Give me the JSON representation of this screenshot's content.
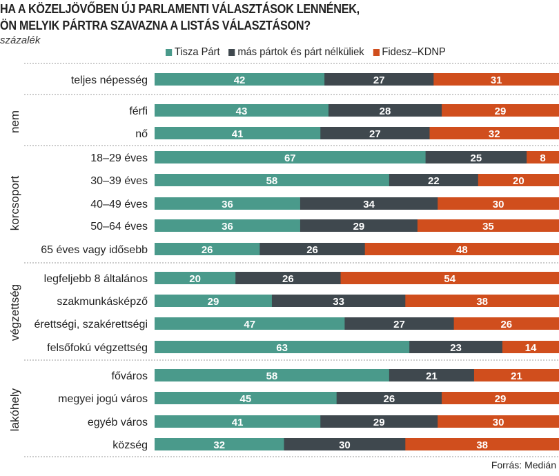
{
  "chart_data": {
    "type": "bar",
    "stacked": true,
    "orientation": "horizontal",
    "title": [
      "HA A KÖZELJÖVŐBEN ÚJ PARLAMENTI VÁLASZTÁSOK LENNÉNEK,",
      "ÖN MELYIK PÁRTRA SZAVAZNA A LISTÁS VÁLASZTÁSON?"
    ],
    "subtitle": "százalék",
    "source": "Forrás: Medián",
    "legend_placement": "top",
    "series": [
      {
        "name": "Tisza Párt",
        "color": "#4a9a8b"
      },
      {
        "name": "más pártok és párt nélküliek",
        "color": "#3f484e"
      },
      {
        "name": "Fidesz–KDNP",
        "color": "#d04e1d"
      }
    ],
    "groups": [
      {
        "label": "",
        "rows": [
          {
            "category": "teljes népesség",
            "values": [
              42,
              27,
              31
            ]
          }
        ]
      },
      {
        "label": "nem",
        "rows": [
          {
            "category": "férfi",
            "values": [
              43,
              28,
              29
            ]
          },
          {
            "category": "nő",
            "values": [
              41,
              27,
              32
            ]
          }
        ]
      },
      {
        "label": "korcsoport",
        "rows": [
          {
            "category": "18–29 éves",
            "values": [
              67,
              25,
              8
            ]
          },
          {
            "category": "30–39 éves",
            "values": [
              58,
              22,
              20
            ]
          },
          {
            "category": "40–49 éves",
            "values": [
              36,
              34,
              30
            ]
          },
          {
            "category": "50–64 éves",
            "values": [
              36,
              29,
              35
            ]
          },
          {
            "category": "65 éves vagy idősebb",
            "values": [
              26,
              26,
              48
            ]
          }
        ]
      },
      {
        "label": "végzettség",
        "rows": [
          {
            "category": "legfeljebb 8 általános",
            "values": [
              20,
              26,
              54
            ]
          },
          {
            "category": "szakmunkásképző",
            "values": [
              29,
              33,
              38
            ]
          },
          {
            "category": "érettségi, szakérettségi",
            "values": [
              47,
              27,
              26
            ]
          },
          {
            "category": "felsőfokú végzettség",
            "values": [
              63,
              23,
              14
            ]
          }
        ]
      },
      {
        "label": "lakóhely",
        "rows": [
          {
            "category": "főváros",
            "values": [
              58,
              21,
              21
            ]
          },
          {
            "category": "megyei jogú város",
            "values": [
              45,
              26,
              29
            ]
          },
          {
            "category": "egyéb város",
            "values": [
              41,
              29,
              30
            ]
          },
          {
            "category": "község",
            "values": [
              32,
              30,
              38
            ]
          }
        ]
      }
    ],
    "xlim": [
      0,
      100
    ]
  }
}
